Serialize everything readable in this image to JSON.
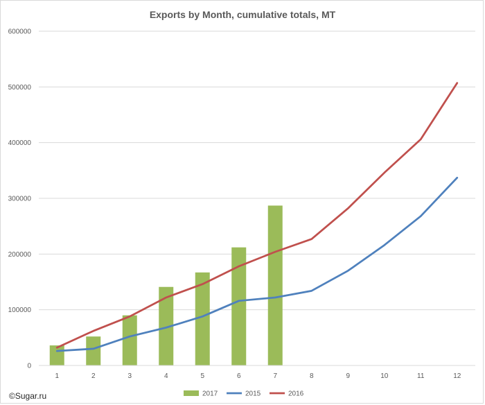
{
  "chart_data": {
    "type": "bar",
    "title": "Exports by Month, cumulative totals, MT",
    "xlabel": "",
    "ylabel": "",
    "categories": [
      "1",
      "2",
      "3",
      "4",
      "5",
      "6",
      "7",
      "8",
      "9",
      "10",
      "11",
      "12"
    ],
    "ylim": [
      0,
      600000
    ],
    "yticks": [
      0,
      100000,
      200000,
      300000,
      400000,
      500000,
      600000
    ],
    "ytick_labels": [
      "0",
      "100000",
      "200000",
      "300000",
      "400000",
      "500000",
      "600000"
    ],
    "grid": true,
    "legend_position": "bottom",
    "series": [
      {
        "name": "2017",
        "type": "bar",
        "color": "#9bbb59",
        "values": [
          36000,
          52000,
          90000,
          141000,
          167000,
          212000,
          287000,
          null,
          null,
          null,
          null,
          null
        ]
      },
      {
        "name": "2015",
        "type": "line",
        "color": "#4f81bd",
        "values": [
          26000,
          30000,
          52000,
          68000,
          88000,
          116000,
          122000,
          134000,
          170000,
          216000,
          268000,
          337000
        ]
      },
      {
        "name": "2016",
        "type": "line",
        "color": "#c0504d",
        "values": [
          32000,
          62000,
          88000,
          122000,
          146000,
          178000,
          204000,
          227000,
          282000,
          346000,
          406000,
          507000
        ]
      }
    ]
  },
  "credit": "©Sugar.ru"
}
